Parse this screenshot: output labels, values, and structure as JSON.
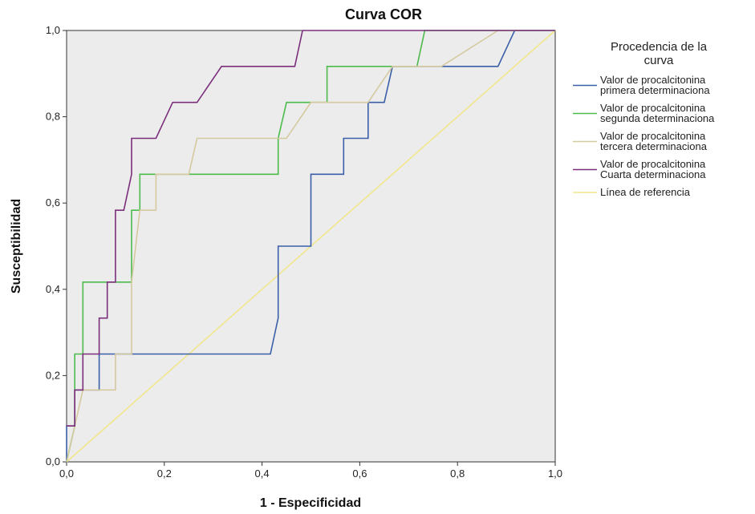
{
  "chart_data": {
    "type": "line",
    "title": "Curva COR",
    "xlabel": "1 - Especificidad",
    "ylabel": "Susceptibilidad",
    "xlim": [
      0,
      1
    ],
    "ylim": [
      0,
      1
    ],
    "ticks": [
      "0,0",
      "0,2",
      "0,4",
      "0,6",
      "0,8",
      "1,0"
    ],
    "tick_values": [
      0,
      0.2,
      0.4,
      0.6,
      0.8,
      1.0
    ],
    "grid": false,
    "legend_position": "right",
    "legend_title": [
      "Procedencia de la",
      "curva"
    ],
    "series": [
      {
        "name": "Valor de procalcitonina primera determinaciona",
        "label_lines": [
          "Valor de procalcitonina",
          "primera determinaciona"
        ],
        "color": "#3a5fa8",
        "points": [
          [
            0,
            0
          ],
          [
            0,
            0.0833
          ],
          [
            0.0167,
            0.0833
          ],
          [
            0.0167,
            0.1667
          ],
          [
            0.0667,
            0.1667
          ],
          [
            0.0667,
            0.25
          ],
          [
            0.417,
            0.25
          ],
          [
            0.433,
            0.3333
          ],
          [
            0.433,
            0.5
          ],
          [
            0.5,
            0.5
          ],
          [
            0.5,
            0.6667
          ],
          [
            0.567,
            0.6667
          ],
          [
            0.567,
            0.75
          ],
          [
            0.617,
            0.75
          ],
          [
            0.617,
            0.8333
          ],
          [
            0.65,
            0.8333
          ],
          [
            0.667,
            0.9167
          ],
          [
            0.883,
            0.9167
          ],
          [
            0.917,
            1.0
          ],
          [
            1.0,
            1.0
          ]
        ]
      },
      {
        "name": "Valor de procalcitonina segunda determinaciona",
        "label_lines": [
          "Valor de procalcitonina",
          "segunda determinaciona"
        ],
        "color": "#4cbb4c",
        "points": [
          [
            0,
            0
          ],
          [
            0.0167,
            0.0833
          ],
          [
            0.0167,
            0.25
          ],
          [
            0.0333,
            0.25
          ],
          [
            0.0333,
            0.4167
          ],
          [
            0.133,
            0.4167
          ],
          [
            0.133,
            0.5833
          ],
          [
            0.15,
            0.5833
          ],
          [
            0.15,
            0.6667
          ],
          [
            0.433,
            0.6667
          ],
          [
            0.433,
            0.75
          ],
          [
            0.45,
            0.8333
          ],
          [
            0.533,
            0.8333
          ],
          [
            0.533,
            0.9167
          ],
          [
            0.717,
            0.9167
          ],
          [
            0.733,
            1.0
          ],
          [
            1.0,
            1.0
          ]
        ]
      },
      {
        "name": "Valor de procalcitonina tercera determinaciona",
        "label_lines": [
          "Valor de procalcitonina",
          "tercera determinaciona"
        ],
        "color": "#d5c9a0",
        "points": [
          [
            0,
            0
          ],
          [
            0.0167,
            0.0833
          ],
          [
            0.0333,
            0.1667
          ],
          [
            0.1,
            0.1667
          ],
          [
            0.1,
            0.25
          ],
          [
            0.133,
            0.25
          ],
          [
            0.133,
            0.4167
          ],
          [
            0.15,
            0.5833
          ],
          [
            0.183,
            0.5833
          ],
          [
            0.183,
            0.6667
          ],
          [
            0.25,
            0.6667
          ],
          [
            0.267,
            0.75
          ],
          [
            0.45,
            0.75
          ],
          [
            0.5,
            0.8333
          ],
          [
            0.617,
            0.8333
          ],
          [
            0.667,
            0.9167
          ],
          [
            0.767,
            0.9167
          ],
          [
            0.883,
            1.0
          ],
          [
            1.0,
            1.0
          ]
        ]
      },
      {
        "name": "Valor de procalcitonina Cuarta determinaciona",
        "label_lines": [
          "Valor de procalcitonina",
          "Cuarta determinaciona"
        ],
        "color": "#7b2f7b",
        "points": [
          [
            0,
            0.0833
          ],
          [
            0.0167,
            0.0833
          ],
          [
            0.0167,
            0.1667
          ],
          [
            0.0333,
            0.1667
          ],
          [
            0.0333,
            0.25
          ],
          [
            0.0667,
            0.25
          ],
          [
            0.0667,
            0.3333
          ],
          [
            0.0833,
            0.3333
          ],
          [
            0.0833,
            0.4167
          ],
          [
            0.1,
            0.4167
          ],
          [
            0.1,
            0.5833
          ],
          [
            0.117,
            0.5833
          ],
          [
            0.133,
            0.6667
          ],
          [
            0.133,
            0.75
          ],
          [
            0.183,
            0.75
          ],
          [
            0.2,
            0.7917
          ],
          [
            0.217,
            0.8333
          ],
          [
            0.267,
            0.8333
          ],
          [
            0.317,
            0.9167
          ],
          [
            0.467,
            0.9167
          ],
          [
            0.483,
            1.0
          ],
          [
            1.0,
            1.0
          ]
        ]
      },
      {
        "name": "Línea de referencia",
        "label_lines": [
          "Línea de referencia"
        ],
        "color": "#f2e68c",
        "points": [
          [
            0,
            0
          ],
          [
            1,
            1
          ]
        ]
      }
    ]
  }
}
